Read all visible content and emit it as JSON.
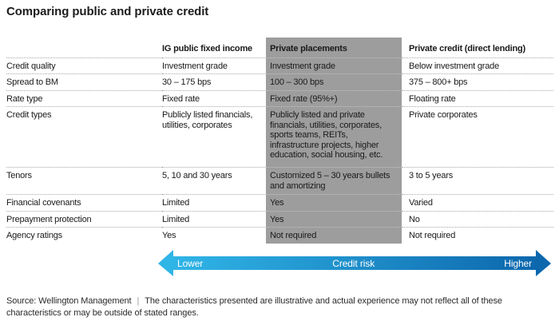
{
  "title": "Comparing public and private credit",
  "table": {
    "columns": [
      "IG public fixed income",
      "Private placements",
      "Private credit (direct lending)"
    ],
    "highlight_column": "Private placements",
    "highlight_color": "#9d9d9d",
    "rows": [
      {
        "label": "Credit quality",
        "values": [
          "Investment grade",
          "Investment grade",
          "Below investment grade"
        ]
      },
      {
        "label": "Spread to BM",
        "values": [
          "30 – 175 bps",
          "100 – 300 bps",
          "375 – 800+ bps"
        ]
      },
      {
        "label": "Rate type",
        "values": [
          "Fixed rate",
          "Fixed rate (95%+)",
          "Floating rate"
        ]
      },
      {
        "label": "Credit types",
        "values": [
          "Publicly listed financials, utilities, corporates",
          "Publicly listed and private financials, utilities, corporates, sports teams, REITs, infrastructure projects, higher education, social housing, etc.",
          "Private corporates"
        ]
      },
      {
        "label": "Tenors",
        "values": [
          "5, 10 and 30 years",
          "Customized 5 – 30 years bullets and amortizing",
          "3 to 5 years"
        ]
      },
      {
        "label": "Financial covenants",
        "values": [
          "Limited",
          "Yes",
          "Varied"
        ]
      },
      {
        "label": "Prepayment protection",
        "values": [
          "Limited",
          "Yes",
          "No"
        ]
      },
      {
        "label": "Agency ratings",
        "values": [
          "Yes",
          "Not required",
          "Not required"
        ]
      }
    ]
  },
  "risk_arrow": {
    "left_label": "Lower",
    "center_label": "Credit risk",
    "right_label": "Higher",
    "gradient_start": "#30b5e7",
    "gradient_end": "#0d67ad"
  },
  "footer": {
    "source": "Source: Wellington Management",
    "separator": "|",
    "disclaimer": "The characteristics presented are illustrative and actual experience may not reflect all of these characteristics or may be outside of stated ranges."
  }
}
